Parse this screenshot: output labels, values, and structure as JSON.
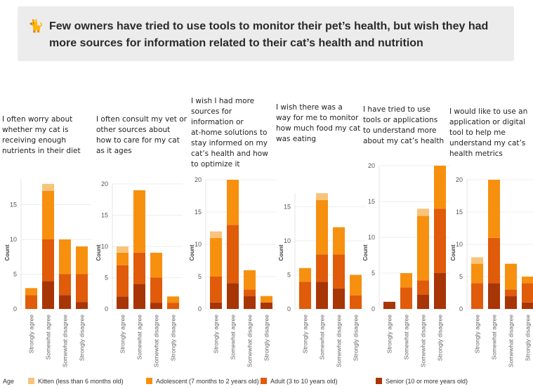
{
  "banner": {
    "icon": "cat-icon",
    "icon_glyph": "🐈",
    "text": "Few owners have tried to use tools to monitor their pet’s health, but wish they had more sources for information related to their cat’s health and nutrition"
  },
  "legend": {
    "title": "Age",
    "items": [
      {
        "label": "Kitten (less than 6 months old)",
        "color": "#f8c47c"
      },
      {
        "label": "Adolescent (7 months to 2 years old)",
        "color": "#f7900f"
      },
      {
        "label": "Adult (3 to 10 years old)",
        "color": "#e05b0a"
      },
      {
        "label": "Senior (10 or more years old)",
        "color": "#a83506"
      }
    ]
  },
  "chart_data": [
    {
      "type": "bar",
      "stacked": true,
      "title": "I often worry about whether my cat is receiving enough nutrients in their diet",
      "title_lines": [
        "I often worry about",
        "whether my cat is",
        "receiving enough",
        "nutrients in their diet"
      ],
      "categories": [
        "Strongly agree",
        "Somewhat agree",
        "Somewhat disagree",
        "Strongly disagree"
      ],
      "ylabel": "Count",
      "ylim": [
        0,
        20
      ],
      "yticks": [
        0,
        5,
        10,
        15
      ],
      "series": [
        {
          "name": "Senior (10 or more years old)",
          "values": [
            0,
            4,
            2,
            1
          ]
        },
        {
          "name": "Adult (3 to 10 years old)",
          "values": [
            2,
            6,
            3,
            4
          ]
        },
        {
          "name": "Adolescent (7 months to 2 years old)",
          "values": [
            1,
            7,
            5,
            4
          ]
        },
        {
          "name": "Kitten (less than 6 months old)",
          "values": [
            0,
            1,
            0,
            0
          ]
        }
      ]
    },
    {
      "type": "bar",
      "stacked": true,
      "title": "I often consult my vet or other sources about how to care for my cat as it ages",
      "title_lines": [
        "I often consult my vet or",
        "other sources about",
        "how to care for my cat",
        "as it ages"
      ],
      "categories": [
        "Strongly agree",
        "Somewhat agree",
        "Somewhat disagree",
        "Strongly disagree"
      ],
      "ylabel": "Count",
      "ylim": [
        0,
        20
      ],
      "yticks": [
        0,
        5,
        10,
        15,
        20
      ],
      "series": [
        {
          "name": "Senior (10 or more years old)",
          "values": [
            2,
            4,
            1,
            0
          ]
        },
        {
          "name": "Adult (3 to 10 years old)",
          "values": [
            5,
            5,
            4,
            1
          ]
        },
        {
          "name": "Adolescent (7 months to 2 years old)",
          "values": [
            2,
            10,
            4,
            1
          ]
        },
        {
          "name": "Kitten (less than 6 months old)",
          "values": [
            1,
            0,
            0,
            0
          ]
        }
      ]
    },
    {
      "type": "bar",
      "stacked": true,
      "title": "I wish I had more sources for information or at-home solutions to stay informed on my cat’s health and how to optimize it",
      "title_lines": [
        "I wish I had more",
        "sources for",
        "information or",
        "at-home solutions to",
        "stay informed on my",
        "cat’s health and how",
        "to optimize it"
      ],
      "categories": [
        "Strongly agree",
        "Somewhat agree",
        "Somewhat disagree",
        "Strongly disagree"
      ],
      "ylabel": "Count",
      "ylim": [
        0,
        20
      ],
      "yticks": [
        0,
        5,
        10,
        15,
        20
      ],
      "series": [
        {
          "name": "Senior (10 or more years old)",
          "values": [
            1,
            4,
            2,
            1
          ]
        },
        {
          "name": "Adult (3 to 10 years old)",
          "values": [
            4,
            9,
            1,
            0
          ]
        },
        {
          "name": "Adolescent (7 months to 2 years old)",
          "values": [
            6,
            7,
            3,
            1
          ]
        },
        {
          "name": "Kitten (less than 6 months old)",
          "values": [
            1,
            0,
            0,
            0
          ]
        }
      ]
    },
    {
      "type": "bar",
      "stacked": true,
      "title": "I wish there was a way for me to monitor how much food my cat was eating",
      "title_lines": [
        "I wish there was a",
        "way for me to monitor",
        "how much food my cat",
        "was eating"
      ],
      "categories": [
        "Strongly agree",
        "Somewhat agree",
        "Somewhat disagree",
        "Strongly disagree"
      ],
      "ylabel": "Count",
      "ylim": [
        0,
        18
      ],
      "yticks": [
        0,
        5,
        10,
        15
      ],
      "series": [
        {
          "name": "Senior (10 or more years old)",
          "values": [
            0,
            4,
            3,
            0
          ]
        },
        {
          "name": "Adult (3 to 10 years old)",
          "values": [
            4,
            4,
            5,
            2
          ]
        },
        {
          "name": "Adolescent (7 months to 2 years old)",
          "values": [
            2,
            8,
            4,
            3
          ]
        },
        {
          "name": "Kitten (less than 6 months old)",
          "values": [
            0,
            1,
            0,
            0
          ]
        }
      ]
    },
    {
      "type": "bar",
      "stacked": true,
      "title": "I have tried to use tools or applications to understand more about my cat’s health",
      "title_lines": [
        "I have tried to use",
        "tools or applications",
        "to understand more",
        "about my cat’s health"
      ],
      "categories": [
        "Strongly agree",
        "Somewhat agree",
        "Somewhat disagree",
        "Strongly disagree"
      ],
      "ylabel": "Count",
      "ylim": [
        0,
        20
      ],
      "yticks": [
        0,
        5,
        10,
        15,
        20
      ],
      "series": [
        {
          "name": "Senior (10 or more years old)",
          "values": [
            1,
            0,
            2,
            5
          ]
        },
        {
          "name": "Adult (3 to 10 years old)",
          "values": [
            0,
            3,
            2,
            9
          ]
        },
        {
          "name": "Adolescent (7 months to 2 years old)",
          "values": [
            0,
            2,
            9,
            6
          ]
        },
        {
          "name": "Kitten (less than 6 months old)",
          "values": [
            0,
            0,
            1,
            0
          ]
        }
      ]
    },
    {
      "type": "bar",
      "stacked": true,
      "title": "I would like to use an application or digital tool to help me understand my cat’s health metrics",
      "title_lines": [
        "I would like to use an",
        "application or digital",
        "tool to help me",
        "understand my cat’s",
        "health metrics"
      ],
      "categories": [
        "Strongly agree",
        "Somewhat agree",
        "Somewhat disagree",
        "Strongly disagree"
      ],
      "ylabel": "Count",
      "ylim": [
        0,
        20
      ],
      "yticks": [
        0,
        5,
        10,
        15,
        20
      ],
      "series": [
        {
          "name": "Senior (10 or more years old)",
          "values": [
            0,
            4,
            2,
            1
          ]
        },
        {
          "name": "Adult (3 to 10 years old)",
          "values": [
            4,
            7,
            1,
            3
          ]
        },
        {
          "name": "Adolescent (7 months to 2 years old)",
          "values": [
            3,
            9,
            4,
            1
          ]
        },
        {
          "name": "Kitten (less than 6 months old)",
          "values": [
            1,
            0,
            0,
            0
          ]
        }
      ]
    }
  ]
}
